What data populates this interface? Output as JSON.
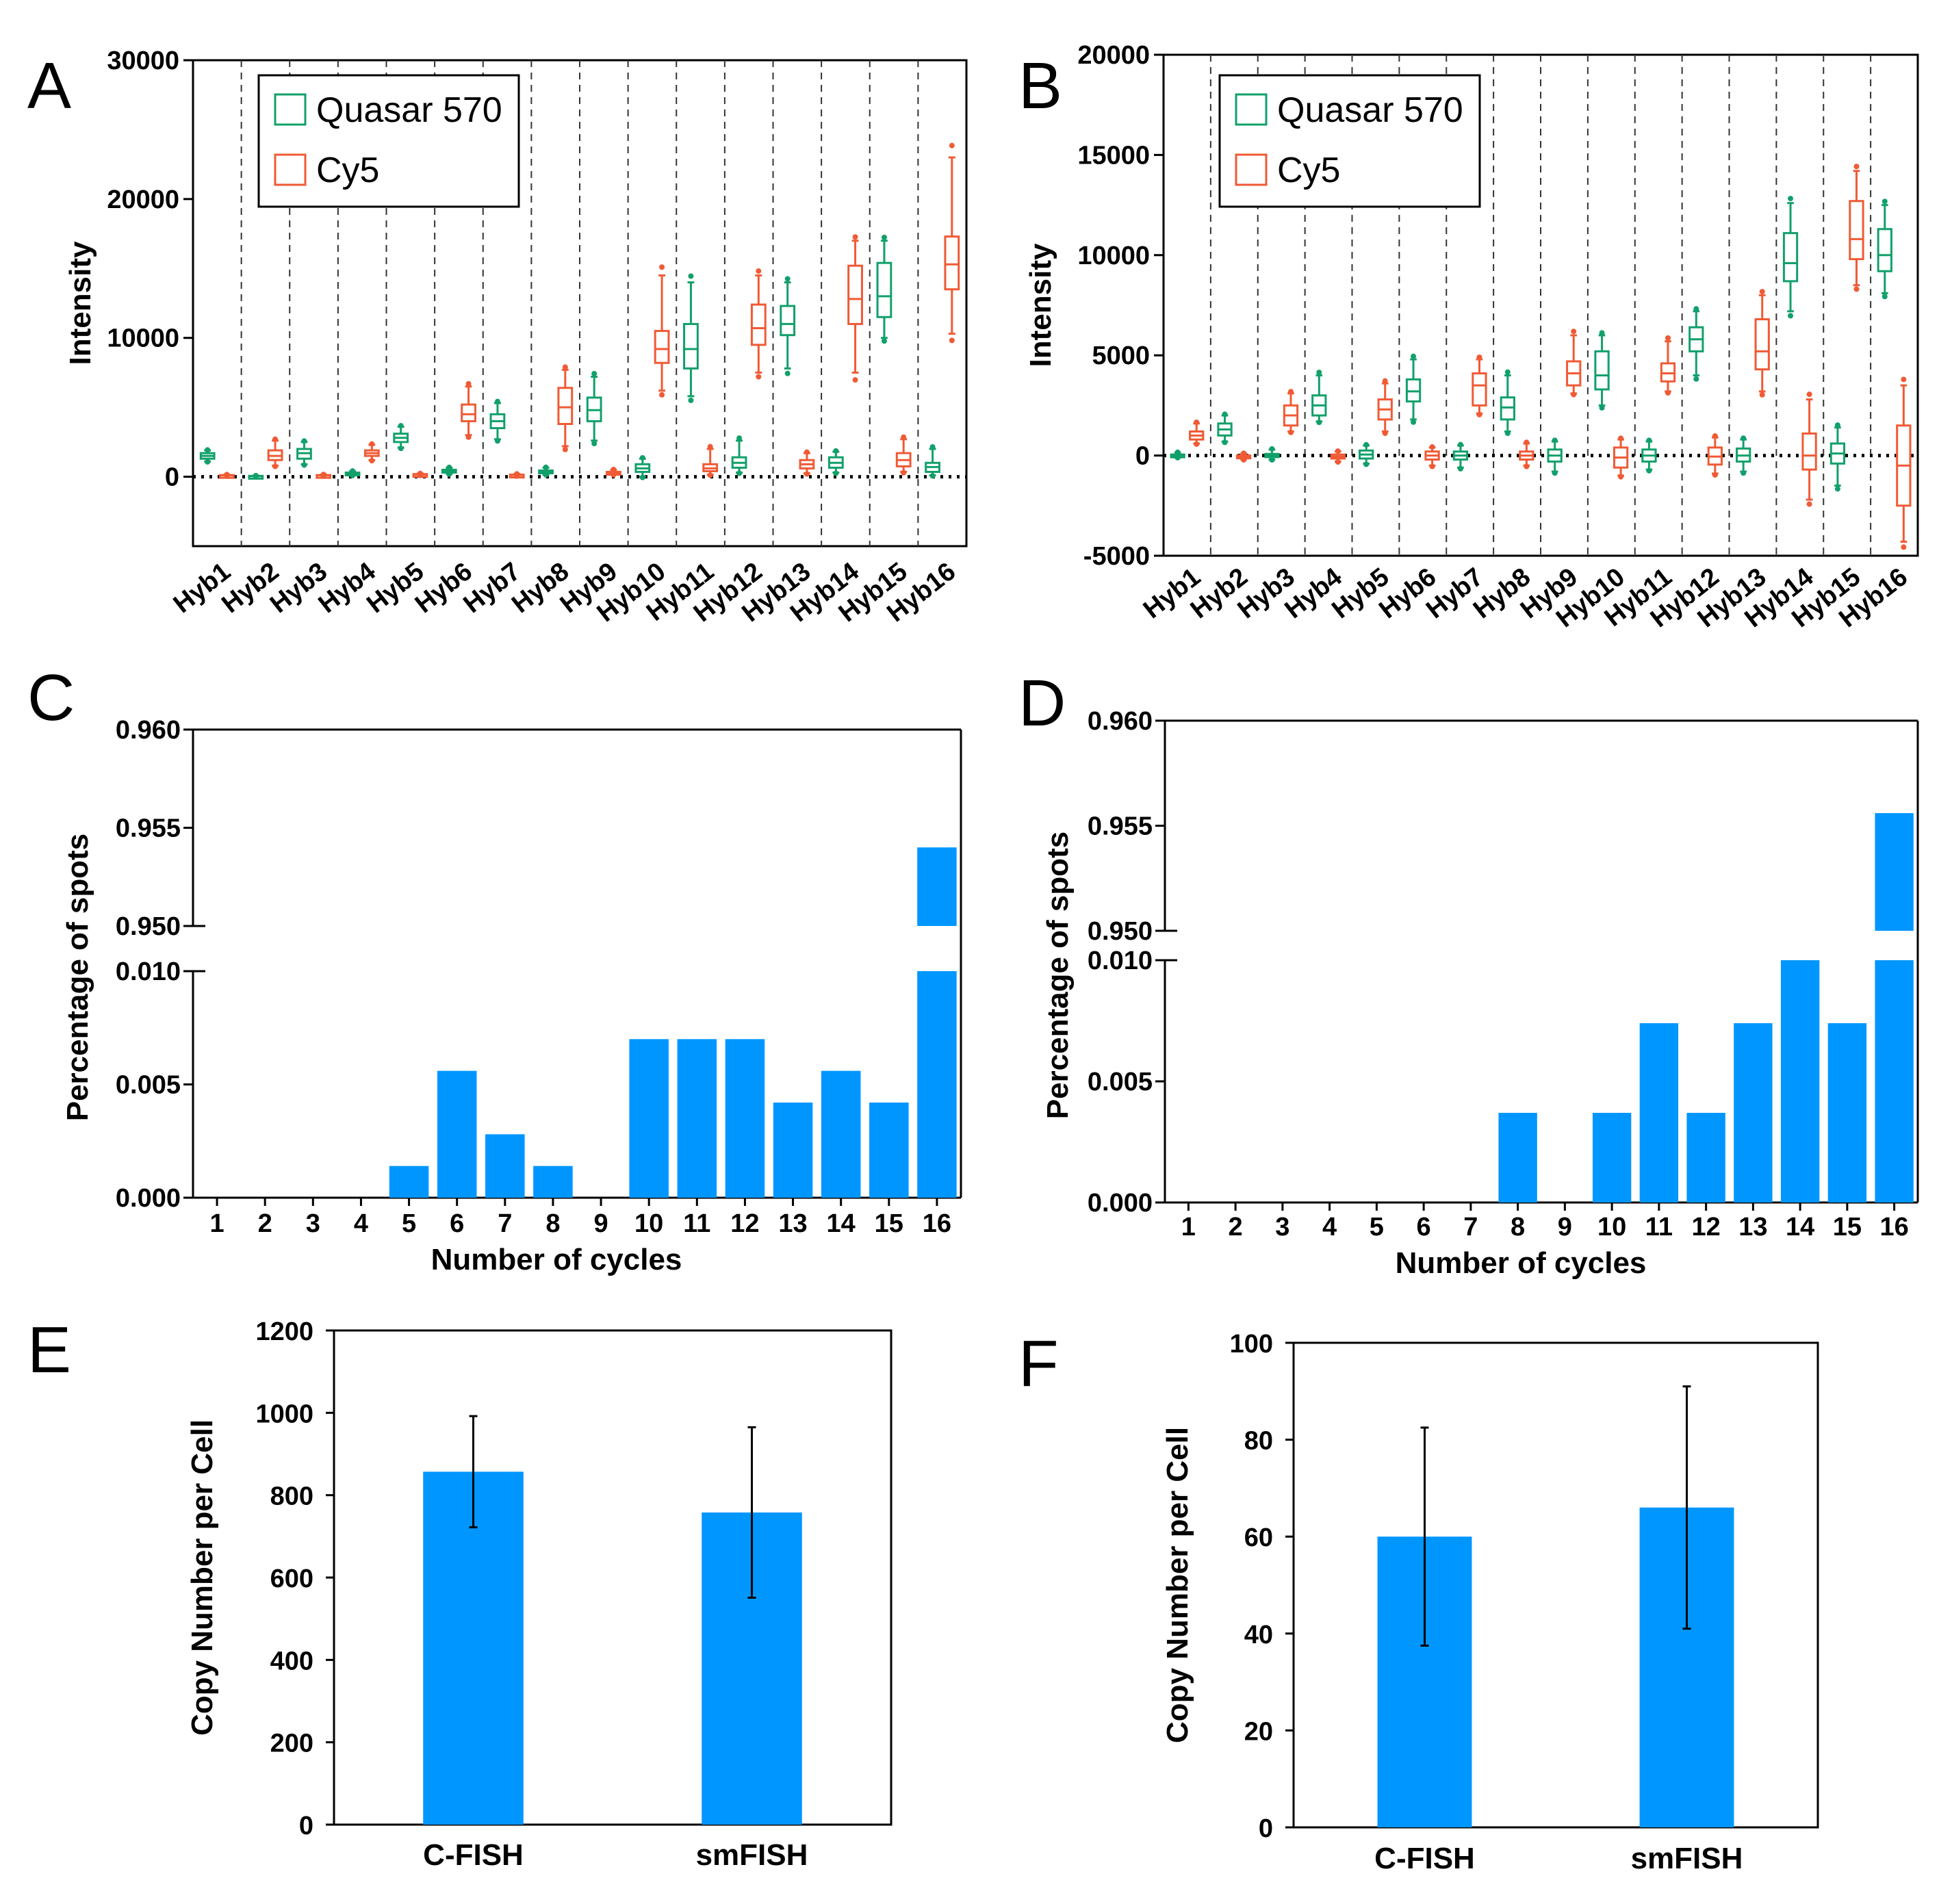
{
  "colors": {
    "green": "#11a06a",
    "red": "#f05a35",
    "blue": "#0096ff",
    "axis": "#000000"
  },
  "chart_data": [
    {
      "id": "A",
      "panel_label": "A",
      "type": "box",
      "ylabel": "Intensity",
      "ylim": [
        -5000,
        30000
      ],
      "yticks": [
        "0",
        "10000",
        "20000",
        "30000"
      ],
      "ytick_values": [
        0,
        10000,
        20000,
        30000
      ],
      "categories": [
        "Hyb1",
        "Hyb2",
        "Hyb3",
        "Hyb4",
        "Hyb5",
        "Hyb6",
        "Hyb7",
        "Hyb8",
        "Hyb9",
        "Hyb10",
        "Hyb11",
        "Hyb12",
        "Hyb13",
        "Hyb14",
        "Hyb15",
        "Hyb16"
      ],
      "legend": [
        {
          "name": "Quasar 570",
          "color": "green"
        },
        {
          "name": "Cy5",
          "color": "red"
        }
      ],
      "zero_line": true,
      "boxes": [
        {
          "c": 0,
          "color": "green",
          "min": 1100,
          "q1": 1300,
          "med": 1500,
          "q3": 1700,
          "max": 1900
        },
        {
          "c": 0,
          "color": "red",
          "min": 50,
          "q1": 80,
          "med": 100,
          "q3": 120,
          "max": 150
        },
        {
          "c": 1,
          "color": "green",
          "min": 0,
          "q1": 20,
          "med": 40,
          "q3": 60,
          "max": 80
        },
        {
          "c": 1,
          "color": "red",
          "min": 800,
          "q1": 1200,
          "med": 1500,
          "q3": 1900,
          "max": 2600
        },
        {
          "c": 2,
          "color": "green",
          "min": 900,
          "q1": 1300,
          "med": 1700,
          "q3": 2000,
          "max": 2500
        },
        {
          "c": 2,
          "color": "red",
          "min": 50,
          "q1": 80,
          "med": 100,
          "q3": 120,
          "max": 160
        },
        {
          "c": 3,
          "color": "green",
          "min": 100,
          "q1": 200,
          "med": 250,
          "q3": 300,
          "max": 400
        },
        {
          "c": 3,
          "color": "red",
          "min": 1200,
          "q1": 1500,
          "med": 1700,
          "q3": 1900,
          "max": 2300
        },
        {
          "c": 4,
          "color": "green",
          "min": 2100,
          "q1": 2500,
          "med": 2800,
          "q3": 3100,
          "max": 3600
        },
        {
          "c": 4,
          "color": "red",
          "min": 100,
          "q1": 130,
          "med": 160,
          "q3": 190,
          "max": 230
        },
        {
          "c": 5,
          "color": "green",
          "min": 200,
          "q1": 300,
          "med": 400,
          "q3": 500,
          "max": 650
        },
        {
          "c": 5,
          "color": "red",
          "min": 3000,
          "q1": 4000,
          "med": 4500,
          "q3": 5200,
          "max": 6500
        },
        {
          "c": 6,
          "color": "green",
          "min": 2700,
          "q1": 3500,
          "med": 4000,
          "q3": 4500,
          "max": 5300
        },
        {
          "c": 6,
          "color": "red",
          "min": 50,
          "q1": 90,
          "med": 120,
          "q3": 150,
          "max": 200
        },
        {
          "c": 7,
          "color": "green",
          "min": 150,
          "q1": 250,
          "med": 350,
          "q3": 450,
          "max": 650
        },
        {
          "c": 7,
          "color": "red",
          "min": 2200,
          "q1": 3800,
          "med": 5000,
          "q3": 6400,
          "max": 7700
        },
        {
          "c": 8,
          "color": "green",
          "min": 2600,
          "q1": 4000,
          "med": 4800,
          "q3": 5700,
          "max": 7200
        },
        {
          "c": 8,
          "color": "red",
          "min": 150,
          "q1": 250,
          "med": 300,
          "q3": 350,
          "max": 500
        },
        {
          "c": 9,
          "color": "green",
          "min": 0,
          "q1": 350,
          "med": 600,
          "q3": 900,
          "max": 1300
        },
        {
          "c": 9,
          "color": "red",
          "min": 6200,
          "q1": 8200,
          "med": 9200,
          "q3": 10500,
          "max": 14500
        },
        {
          "c": 10,
          "color": "green",
          "min": 5800,
          "q1": 7800,
          "med": 9200,
          "q3": 11000,
          "max": 14000
        },
        {
          "c": 10,
          "color": "red",
          "min": 150,
          "q1": 400,
          "med": 600,
          "q3": 900,
          "max": 2000
        },
        {
          "c": 11,
          "color": "green",
          "min": 300,
          "q1": 650,
          "med": 1000,
          "q3": 1400,
          "max": 2600
        },
        {
          "c": 11,
          "color": "red",
          "min": 7500,
          "q1": 9500,
          "med": 10700,
          "q3": 12400,
          "max": 14500
        },
        {
          "c": 12,
          "color": "green",
          "min": 7800,
          "q1": 10200,
          "med": 11000,
          "q3": 12300,
          "max": 14000
        },
        {
          "c": 12,
          "color": "red",
          "min": 250,
          "q1": 600,
          "med": 900,
          "q3": 1200,
          "max": 1700
        },
        {
          "c": 13,
          "color": "green",
          "min": 300,
          "q1": 650,
          "med": 1000,
          "q3": 1400,
          "max": 1800
        },
        {
          "c": 13,
          "color": "red",
          "min": 7500,
          "q1": 11000,
          "med": 12800,
          "q3": 15200,
          "max": 17000
        },
        {
          "c": 14,
          "color": "green",
          "min": 10000,
          "q1": 11500,
          "med": 13000,
          "q3": 15400,
          "max": 17000
        },
        {
          "c": 14,
          "color": "red",
          "min": 350,
          "q1": 750,
          "med": 1200,
          "q3": 1700,
          "max": 2700
        },
        {
          "c": 15,
          "color": "green",
          "min": 100,
          "q1": 350,
          "med": 700,
          "q3": 1000,
          "max": 2000
        },
        {
          "c": 15,
          "color": "red",
          "min": 10300,
          "q1": 13500,
          "med": 15300,
          "q3": 17300,
          "max": 23000
        }
      ]
    },
    {
      "id": "B",
      "panel_label": "B",
      "type": "box",
      "ylabel": "Intensity",
      "ylim": [
        -5000,
        20000
      ],
      "yticks": [
        "-5000",
        "0",
        "5000",
        "10000",
        "15000",
        "20000"
      ],
      "ytick_values": [
        -5000,
        0,
        5000,
        10000,
        15000,
        20000
      ],
      "categories": [
        "Hyb1",
        "Hyb2",
        "Hyb3",
        "Hyb4",
        "Hyb5",
        "Hyb6",
        "Hyb7",
        "Hyb8",
        "Hyb9",
        "Hyb10",
        "Hyb11",
        "Hyb12",
        "Hyb13",
        "Hyb14",
        "Hyb15",
        "Hyb16"
      ],
      "legend": [
        {
          "name": "Quasar 570",
          "color": "green"
        },
        {
          "name": "Cy5",
          "color": "red"
        }
      ],
      "zero_line": true,
      "boxes": [
        {
          "c": 0,
          "color": "green",
          "min": -100,
          "q1": -50,
          "med": 0,
          "q3": 50,
          "max": 150
        },
        {
          "c": 0,
          "color": "red",
          "min": 600,
          "q1": 800,
          "med": 1000,
          "q3": 1200,
          "max": 1600
        },
        {
          "c": 1,
          "color": "green",
          "min": 700,
          "q1": 1000,
          "med": 1300,
          "q3": 1600,
          "max": 2000
        },
        {
          "c": 1,
          "color": "red",
          "min": -200,
          "q1": -100,
          "med": -50,
          "q3": 0,
          "max": 100
        },
        {
          "c": 2,
          "color": "green",
          "min": -200,
          "q1": -80,
          "med": 0,
          "q3": 80,
          "max": 300
        },
        {
          "c": 2,
          "color": "red",
          "min": 1200,
          "q1": 1500,
          "med": 2000,
          "q3": 2500,
          "max": 3100
        },
        {
          "c": 3,
          "color": "green",
          "min": 1700,
          "q1": 2000,
          "med": 2500,
          "q3": 3000,
          "max": 4000
        },
        {
          "c": 3,
          "color": "red",
          "min": -300,
          "q1": -150,
          "med": -50,
          "q3": 50,
          "max": 200
        },
        {
          "c": 4,
          "color": "green",
          "min": -400,
          "q1": -150,
          "med": 50,
          "q3": 250,
          "max": 500
        },
        {
          "c": 4,
          "color": "red",
          "min": 1200,
          "q1": 1800,
          "med": 2300,
          "q3": 2800,
          "max": 3600
        },
        {
          "c": 5,
          "color": "green",
          "min": 1800,
          "q1": 2700,
          "med": 3200,
          "q3": 3800,
          "max": 4800
        },
        {
          "c": 5,
          "color": "red",
          "min": -500,
          "q1": -200,
          "med": 0,
          "q3": 200,
          "max": 400
        },
        {
          "c": 6,
          "color": "green",
          "min": -600,
          "q1": -200,
          "med": 0,
          "q3": 200,
          "max": 500
        },
        {
          "c": 6,
          "color": "red",
          "min": 2100,
          "q1": 2500,
          "med": 3500,
          "q3": 4100,
          "max": 4800
        },
        {
          "c": 7,
          "color": "green",
          "min": 1200,
          "q1": 1800,
          "med": 2400,
          "q3": 2900,
          "max": 4000
        },
        {
          "c": 7,
          "color": "red",
          "min": -500,
          "q1": -200,
          "med": 0,
          "q3": 200,
          "max": 600
        },
        {
          "c": 8,
          "color": "green",
          "min": -800,
          "q1": -300,
          "med": 0,
          "q3": 300,
          "max": 700
        },
        {
          "c": 8,
          "color": "red",
          "min": 3100,
          "q1": 3500,
          "med": 4100,
          "q3": 4700,
          "max": 6000
        },
        {
          "c": 9,
          "color": "green",
          "min": 2500,
          "q1": 3300,
          "med": 4000,
          "q3": 5200,
          "max": 6000
        },
        {
          "c": 9,
          "color": "red",
          "min": -1000,
          "q1": -600,
          "med": -100,
          "q3": 400,
          "max": 800
        },
        {
          "c": 10,
          "color": "green",
          "min": -700,
          "q1": -300,
          "med": 0,
          "q3": 300,
          "max": 700
        },
        {
          "c": 10,
          "color": "red",
          "min": 3200,
          "q1": 3700,
          "med": 4100,
          "q3": 4600,
          "max": 5700
        },
        {
          "c": 11,
          "color": "green",
          "min": 4000,
          "q1": 5200,
          "med": 5800,
          "q3": 6400,
          "max": 7200
        },
        {
          "c": 11,
          "color": "red",
          "min": -900,
          "q1": -450,
          "med": -50,
          "q3": 400,
          "max": 900
        },
        {
          "c": 12,
          "color": "green",
          "min": -800,
          "q1": -300,
          "med": 0,
          "q3": 350,
          "max": 800
        },
        {
          "c": 12,
          "color": "red",
          "min": 3200,
          "q1": 4300,
          "med": 5200,
          "q3": 6800,
          "max": 8000
        },
        {
          "c": 13,
          "color": "green",
          "min": 7200,
          "q1": 8700,
          "med": 9600,
          "q3": 11100,
          "max": 12600
        },
        {
          "c": 13,
          "color": "red",
          "min": -2200,
          "q1": -700,
          "med": 0,
          "q3": 1100,
          "max": 2800
        },
        {
          "c": 14,
          "color": "green",
          "min": -1500,
          "q1": -400,
          "med": 100,
          "q3": 600,
          "max": 1400
        },
        {
          "c": 14,
          "color": "red",
          "min": 8500,
          "q1": 9800,
          "med": 10800,
          "q3": 12700,
          "max": 14200
        },
        {
          "c": 15,
          "color": "green",
          "min": 8100,
          "q1": 9200,
          "med": 10000,
          "q3": 11300,
          "max": 12500
        },
        {
          "c": 15,
          "color": "red",
          "min": -4300,
          "q1": -2500,
          "med": -500,
          "q3": 1500,
          "max": 3500
        }
      ]
    },
    {
      "id": "C",
      "panel_label": "C",
      "type": "bar",
      "broken_axis": true,
      "xlabel": "Number of cycles",
      "ylabel": "Percentage of spots",
      "categories": [
        "1",
        "2",
        "3",
        "4",
        "5",
        "6",
        "7",
        "8",
        "9",
        "10",
        "11",
        "12",
        "13",
        "14",
        "15",
        "16"
      ],
      "values": [
        0,
        0,
        0,
        0,
        0.0014,
        0.0056,
        0.0028,
        0.0014,
        0,
        0.007,
        0.007,
        0.007,
        0.0042,
        0.0056,
        0.0042,
        0.954
      ],
      "lower_ylim": [
        0,
        0.01
      ],
      "lower_yticks": [
        "0.000",
        "0.005",
        "0.010"
      ],
      "lower_ytick_values": [
        0,
        0.005,
        0.01
      ],
      "upper_ylim": [
        0.95,
        0.96
      ],
      "upper_yticks": [
        "0.950",
        "0.955",
        "0.960"
      ],
      "upper_ytick_values": [
        0.95,
        0.955,
        0.96
      ]
    },
    {
      "id": "D",
      "panel_label": "D",
      "type": "bar",
      "broken_axis": true,
      "xlabel": "Number of cycles",
      "ylabel": "Percentage of spots",
      "categories": [
        "1",
        "2",
        "3",
        "4",
        "5",
        "6",
        "7",
        "8",
        "9",
        "10",
        "11",
        "12",
        "13",
        "14",
        "15",
        "16"
      ],
      "values": [
        0,
        0,
        0,
        0,
        0,
        0,
        0,
        0.0037,
        0,
        0.0037,
        0.0074,
        0.0037,
        0.0074,
        0.01,
        0.0074,
        0.9556
      ],
      "lower_ylim": [
        0,
        0.01
      ],
      "lower_yticks": [
        "0.000",
        "0.005",
        "0.010"
      ],
      "lower_ytick_values": [
        0,
        0.005,
        0.01
      ],
      "upper_ylim": [
        0.95,
        0.96
      ],
      "upper_yticks": [
        "0.950",
        "0.955",
        "0.960"
      ],
      "upper_ytick_values": [
        0.95,
        0.955,
        0.96
      ]
    },
    {
      "id": "E",
      "panel_label": "E",
      "type": "bar",
      "xlabel": "",
      "ylabel": "Copy Number per Cell",
      "categories": [
        "C-FISH",
        "smFISH"
      ],
      "values": [
        857,
        758
      ],
      "errors": [
        135,
        207
      ],
      "ylim": [
        0,
        1200
      ],
      "yticks": [
        "0",
        "200",
        "400",
        "600",
        "800",
        "1000",
        "1200"
      ],
      "ytick_values": [
        0,
        200,
        400,
        600,
        800,
        1000,
        1200
      ]
    },
    {
      "id": "F",
      "panel_label": "F",
      "type": "bar",
      "xlabel": "",
      "ylabel": "Copy Number per Cell",
      "categories": [
        "C-FISH",
        "smFISH"
      ],
      "values": [
        60,
        66
      ],
      "errors": [
        22.5,
        25
      ],
      "ylim": [
        0,
        100
      ],
      "yticks": [
        "0",
        "20",
        "40",
        "60",
        "80",
        "100"
      ],
      "ytick_values": [
        0,
        20,
        40,
        60,
        80,
        100
      ]
    }
  ]
}
